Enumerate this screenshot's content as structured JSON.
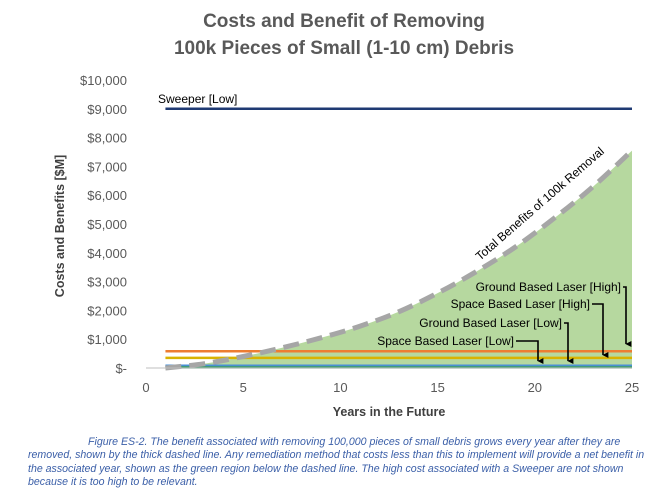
{
  "chart_data": {
    "type": "line",
    "title_line1": "Costs and Benefit of Removing",
    "title_line2": "100k Pieces of Small (1-10 cm) Debris",
    "xlabel": "Years in the Future",
    "ylabel": "Costs and Benefits [$M]",
    "xlim": [
      0,
      25
    ],
    "ylim": [
      0,
      10000
    ],
    "x_ticks": [
      0,
      5,
      10,
      15,
      20,
      25
    ],
    "x_tick_labels": [
      "0",
      "5",
      "10",
      "15",
      "20",
      "25"
    ],
    "y_ticks": [
      0,
      1000,
      2000,
      3000,
      4000,
      5000,
      6000,
      7000,
      8000,
      9000,
      10000
    ],
    "y_tick_labels": [
      "$-",
      "$1,000",
      "$2,000",
      "$3,000",
      "$4,000",
      "$5,000",
      "$6,000",
      "$7,000",
      "$8,000",
      "$9,000",
      "$10,000"
    ],
    "benefit_series": {
      "name": "Total Benefits of 100k Removal",
      "x": [
        1,
        3,
        5,
        7,
        9,
        11,
        13,
        15,
        17,
        19,
        21,
        23,
        25
      ],
      "y": [
        0,
        150,
        400,
        700,
        1050,
        1450,
        1950,
        2600,
        3350,
        4200,
        5200,
        6300,
        7550
      ],
      "color": "#a6a6a6",
      "fill": "#a9d18e"
    },
    "cost_series": [
      {
        "name": "Sweeper [Low]",
        "y": 9000,
        "x": [
          1,
          25
        ],
        "color": "#1f3a73"
      },
      {
        "name": "Ground Based Laser [High]",
        "y": 580,
        "x": [
          1,
          25
        ],
        "color": "#ed7d31"
      },
      {
        "name": "Space Based Laser [High]",
        "y": 350,
        "x": [
          1,
          25
        ],
        "color": "#d9b300"
      },
      {
        "name": "Ground Based Laser [Low]",
        "y": 80,
        "x": [
          1,
          25
        ],
        "color": "#4a8fd4"
      },
      {
        "name": "Space Based Laser [Low]",
        "y": 20,
        "x": [
          1,
          25
        ],
        "color": "#3f9e6c"
      }
    ],
    "grid": false,
    "legend": "none"
  },
  "caption": {
    "text": "Figure ES-2. The benefit associated with removing 100,000 pieces of small debris grows every year after they are removed, shown by the thick dashed line. Any remediation method that costs less than this to implement will provide a net benefit in the associated year, shown as the green region below the dashed line. The high cost associated with a Sweeper are not shown because it is too high to be relevant."
  }
}
